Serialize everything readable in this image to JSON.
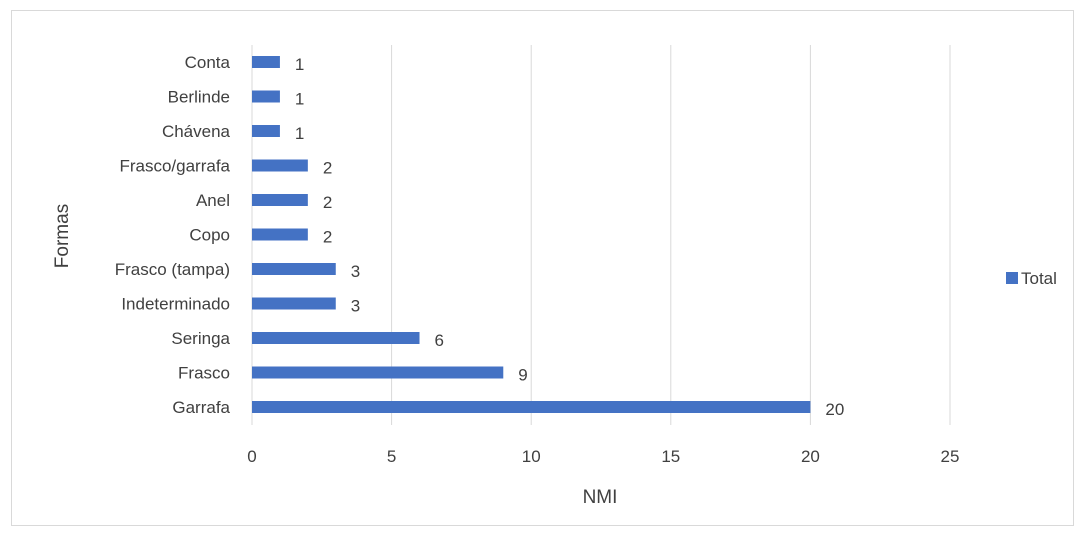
{
  "chart_data": {
    "type": "bar",
    "orientation": "horizontal",
    "categories": [
      "Conta",
      "Berlinde",
      "Chávena",
      "Frasco/garrafa",
      "Anel",
      "Copo",
      "Frasco (tampa)",
      "Indeterminado",
      "Seringa",
      "Frasco",
      "Garrafa"
    ],
    "series": [
      {
        "name": "Total",
        "values": [
          1,
          1,
          1,
          2,
          2,
          2,
          3,
          3,
          6,
          9,
          20
        ],
        "color": "#4472C4"
      }
    ],
    "xlabel": "NMI",
    "ylabel": "Formas",
    "xlim": [
      0,
      25
    ],
    "xticks": [
      "0",
      "5",
      "10",
      "15",
      "20",
      "25"
    ],
    "data_labels": true,
    "grid": "vertical",
    "legend": "right"
  }
}
